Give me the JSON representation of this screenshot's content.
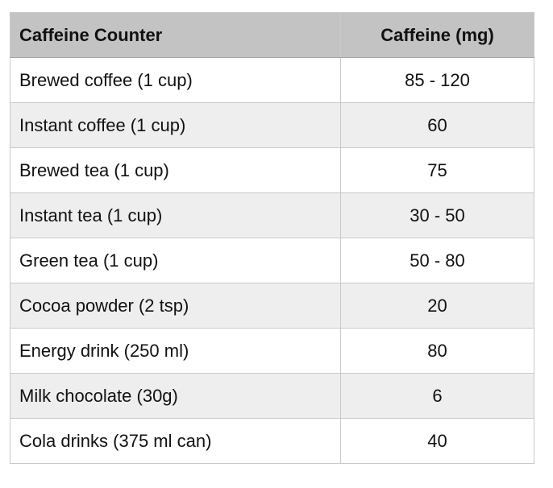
{
  "table": {
    "headers": [
      "Caffeine Counter",
      "Caffeine (mg)"
    ],
    "rows": [
      [
        "Brewed coffee (1 cup)",
        "85 - 120"
      ],
      [
        "Instant coffee (1 cup)",
        "60"
      ],
      [
        "Brewed tea (1 cup)",
        "75"
      ],
      [
        "Instant tea (1 cup)",
        "30 - 50"
      ],
      [
        "Green tea (1 cup)",
        "50 - 80"
      ],
      [
        "Cocoa powder (2 tsp)",
        "20"
      ],
      [
        "Energy drink (250 ml)",
        "80"
      ],
      [
        "Milk chocolate (30g)",
        "6"
      ],
      [
        "Cola drinks (375 ml can)",
        "40"
      ]
    ]
  },
  "colors": {
    "header_bg": "#c3c3c3",
    "row_alt_bg": "#eeeeee",
    "row_bg": "#ffffff",
    "border": "#c9c9c9"
  }
}
